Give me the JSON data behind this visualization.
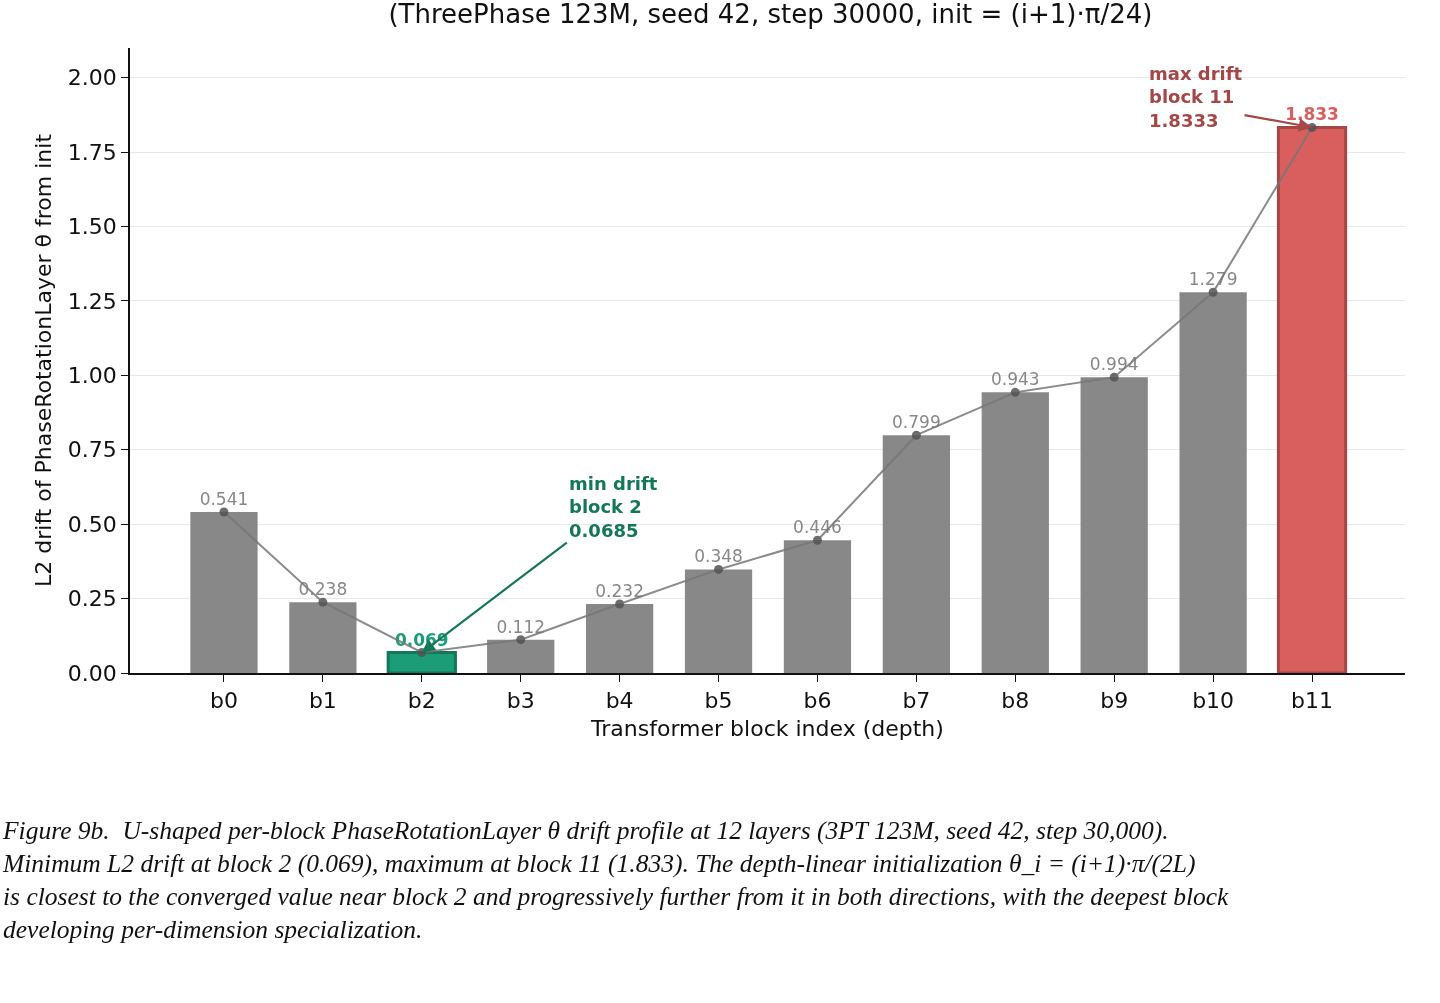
{
  "chart_data": {
    "type": "bar",
    "title": "(ThreePhase 123M, seed 42, step 30000, init = (i+1)·π/24)",
    "xlabel": "Transformer block index (depth)",
    "ylabel": "L2 drift of PhaseRotationLayer θ from init",
    "categories": [
      "b0",
      "b1",
      "b2",
      "b3",
      "b4",
      "b5",
      "b6",
      "b7",
      "b8",
      "b9",
      "b10",
      "b11"
    ],
    "series": [
      {
        "colors": [
          "#888888",
          "#888888",
          "#1b9e77",
          "#888888",
          "#888888",
          "#888888",
          "#888888",
          "#888888",
          "#888888",
          "#888888",
          "#888888",
          "#d95f5f"
        ],
        "values": [
          0.541,
          0.238,
          0.0685,
          0.112,
          0.232,
          0.348,
          0.446,
          0.799,
          0.943,
          0.994,
          1.279,
          1.8333
        ],
        "value_labels": [
          "0.541",
          "0.238",
          "0.069",
          "0.112",
          "0.232",
          "0.348",
          "0.446",
          "0.799",
          "0.943",
          "0.994",
          "1.279",
          "1.833"
        ]
      },
      {
        "type": "line",
        "color": "#777777",
        "marker": "circle",
        "values": [
          0.541,
          0.238,
          0.069,
          0.112,
          0.232,
          0.348,
          0.446,
          0.799,
          0.943,
          0.994,
          1.279,
          1.833
        ]
      }
    ],
    "ylim": [
      0,
      2.1
    ],
    "yticks": [
      {
        "value": 0,
        "label": "0.00"
      },
      {
        "value": 0.25,
        "label": "0.25"
      },
      {
        "value": 0.5,
        "label": "0.50"
      },
      {
        "value": 0.75,
        "label": "0.75"
      },
      {
        "value": 1,
        "label": "1.00"
      },
      {
        "value": 1.25,
        "label": "1.25"
      },
      {
        "value": 1.5,
        "label": "1.50"
      },
      {
        "value": 1.75,
        "label": "1.75"
      },
      {
        "value": 2,
        "label": "2.00"
      }
    ],
    "grid": "y",
    "annotations": [
      {
        "text": "min drift\nblock 2\n0.0685",
        "x": "b2",
        "y": 0.0685
      },
      {
        "text": "max drift\nblock 11\n1.8333",
        "x": "b11",
        "y": 1.8333
      },
      "Figure 9b.  U-shaped per-block PhaseRotationLayer θ drift profile at 12 layers (3PT 123M, seed 42, step 30,000).\nMinimum L2 drift at block 2 (0.069), maximum at block 11 (1.833). The depth-linear initialization θ_i = (i+1)·π/(2L)\nis closest to the converged value near block 2 and progressively further from it in both directions, with the deepest block\ndeveloping per-dimension specialization."
    ]
  }
}
